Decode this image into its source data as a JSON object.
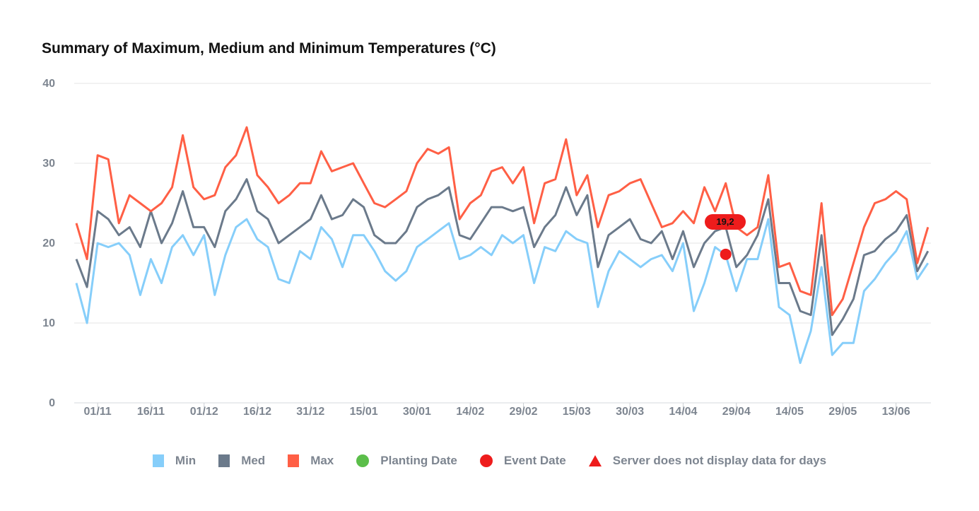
{
  "chart_data": {
    "type": "line",
    "title": "Summary of Maximum, Medium and Minimum Temperatures (°C)",
    "xlabel": "",
    "ylabel": "",
    "ylim": [
      0,
      40
    ],
    "y_ticks": [
      "0",
      "10",
      "20",
      "30",
      "40"
    ],
    "x_ticks": [
      "01/11",
      "16/11",
      "01/12",
      "16/12",
      "31/12",
      "15/01",
      "30/01",
      "14/02",
      "29/02",
      "15/03",
      "30/03",
      "14/04",
      "29/04",
      "14/05",
      "29/05",
      "13/06"
    ],
    "grid": true,
    "legend_position": "bottom",
    "dates": [
      "26/10",
      "29/10",
      "01/11",
      "04/11",
      "07/11",
      "10/11",
      "13/11",
      "16/11",
      "19/11",
      "22/11",
      "25/11",
      "28/11",
      "01/12",
      "04/12",
      "07/12",
      "10/12",
      "13/12",
      "16/12",
      "19/12",
      "22/12",
      "25/12",
      "28/12",
      "31/12",
      "03/01",
      "06/01",
      "09/01",
      "12/01",
      "15/01",
      "18/01",
      "21/01",
      "24/01",
      "27/01",
      "30/01",
      "02/02",
      "05/02",
      "08/02",
      "11/02",
      "14/02",
      "17/02",
      "20/02",
      "23/02",
      "26/02",
      "29/02",
      "03/03",
      "06/03",
      "09/03",
      "12/03",
      "15/03",
      "18/03",
      "21/03",
      "24/03",
      "27/03",
      "30/03",
      "02/04",
      "05/04",
      "08/04",
      "11/04",
      "14/04",
      "17/04",
      "20/04",
      "23/04",
      "26/04",
      "29/04",
      "02/05",
      "05/05",
      "08/05",
      "11/05",
      "14/05",
      "17/05",
      "20/05",
      "23/05",
      "26/05",
      "29/05",
      "01/06",
      "04/06",
      "07/06",
      "10/06",
      "13/06",
      "16/06",
      "19/06",
      "22/06"
    ],
    "series": [
      {
        "name": "Min",
        "color": "#86cefa",
        "values": [
          15,
          10,
          20,
          19.5,
          20,
          18.5,
          13.5,
          18,
          15,
          19.5,
          21,
          18.5,
          21,
          13.5,
          18.5,
          22,
          23,
          20.5,
          19.5,
          15.5,
          15,
          19,
          18,
          22,
          20.5,
          17,
          21,
          21,
          19,
          16.5,
          15.3,
          16.5,
          19.5,
          20.5,
          21.5,
          22.5,
          18,
          18.5,
          19.5,
          18.5,
          21,
          20,
          21,
          15,
          19.5,
          19,
          21.5,
          20.5,
          20,
          12,
          16.5,
          19,
          18,
          17,
          18,
          18.5,
          16.5,
          20,
          11.5,
          15,
          19.5,
          18.5,
          14,
          18,
          18,
          23,
          12,
          11,
          5,
          9,
          17,
          6,
          7.5,
          7.5,
          14,
          15.5,
          17.5,
          19,
          21.5,
          15.5,
          17.5
        ]
      },
      {
        "name": "Med",
        "color": "#6b7a8b",
        "values": [
          18,
          14.5,
          24,
          23,
          21,
          22,
          19.5,
          24,
          20,
          22.5,
          26.5,
          22,
          22,
          19.5,
          24,
          25.5,
          28,
          24,
          23,
          20,
          21,
          22,
          23,
          26,
          23,
          23.5,
          25.5,
          24.5,
          21,
          20,
          20,
          21.5,
          24.5,
          25.5,
          26,
          27,
          21,
          20.5,
          22.5,
          24.5,
          24.5,
          24,
          24.5,
          19.5,
          22,
          23.5,
          27,
          23.5,
          26,
          17,
          21,
          22,
          23,
          20.5,
          20,
          21.5,
          18,
          21.5,
          17,
          20,
          21.5,
          22,
          17,
          18.5,
          21,
          25.5,
          15,
          15,
          11.5,
          11,
          21,
          8.5,
          10.5,
          13,
          18.5,
          19,
          20.5,
          21.5,
          23.5,
          16.5,
          19
        ]
      },
      {
        "name": "Max",
        "color": "#ff5f45",
        "values": [
          22.5,
          18,
          31,
          30.5,
          22.5,
          26,
          25,
          24,
          25,
          27,
          33.5,
          27,
          25.5,
          26,
          29.5,
          31,
          34.5,
          28.5,
          27,
          25,
          26,
          27.5,
          27.5,
          31.5,
          29,
          29.5,
          30,
          27.5,
          25,
          24.5,
          25.5,
          26.5,
          30,
          31.8,
          31.2,
          32,
          23,
          25,
          26,
          29,
          29.5,
          27.5,
          29.5,
          22.5,
          27.5,
          28,
          33,
          26,
          28.5,
          22,
          26,
          26.5,
          27.5,
          28,
          25,
          22,
          22.5,
          24,
          22.5,
          27,
          24,
          27.5,
          22,
          21,
          22,
          28.5,
          17,
          17.5,
          14,
          13.5,
          25,
          11,
          13,
          17.5,
          22,
          25,
          25.5,
          26.5,
          25.5,
          17.5,
          22
        ]
      }
    ],
    "markers": {
      "event": {
        "date": "26/04",
        "value": 18.6,
        "label": "19,2",
        "color": "#ee1c1c"
      }
    },
    "legend": [
      {
        "label": "Min",
        "shape": "square",
        "color": "#86cefa"
      },
      {
        "label": "Med",
        "shape": "square",
        "color": "#6b7a8b"
      },
      {
        "label": "Max",
        "shape": "square",
        "color": "#ff5f45"
      },
      {
        "label": "Planting Date",
        "shape": "circle",
        "color": "#5bbe4a"
      },
      {
        "label": "Event Date",
        "shape": "circle",
        "color": "#ee1c1c"
      },
      {
        "label": "Server does not display data for days",
        "shape": "triangle",
        "color": "#ee1c1c"
      }
    ]
  }
}
